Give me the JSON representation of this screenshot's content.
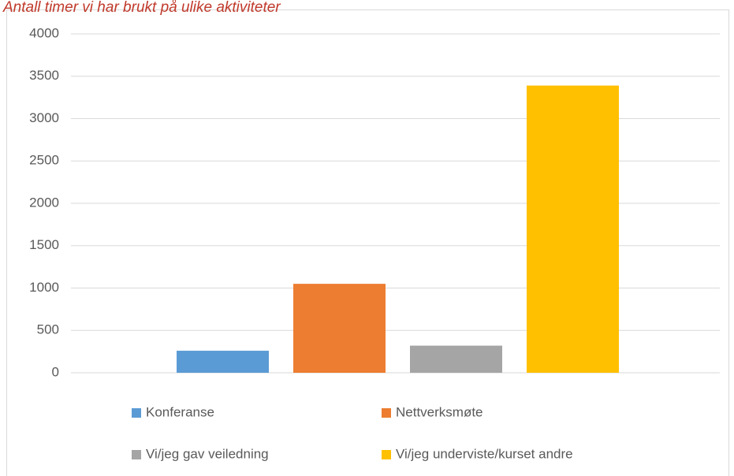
{
  "chart_data": {
    "type": "bar",
    "title": "Antall timer vi har brukt på ulike aktiviteter",
    "categories": [
      null
    ],
    "series": [
      {
        "name": "Konferanse",
        "color": "#5b9bd5",
        "values": [
          260
        ]
      },
      {
        "name": "Nettverksmøte",
        "color": "#ed7d31",
        "values": [
          1050
        ]
      },
      {
        "name": "Vi/jeg gav veiledning",
        "color": "#a5a5a5",
        "values": [
          320
        ]
      },
      {
        "name": "Vi/jeg underviste/kurset andre",
        "color": "#ffc000",
        "values": [
          3390
        ]
      }
    ],
    "ylim": [
      0,
      4000
    ],
    "yticks": [
      0,
      500,
      1000,
      1500,
      2000,
      2500,
      3000,
      3500,
      4000
    ],
    "grid": true
  }
}
